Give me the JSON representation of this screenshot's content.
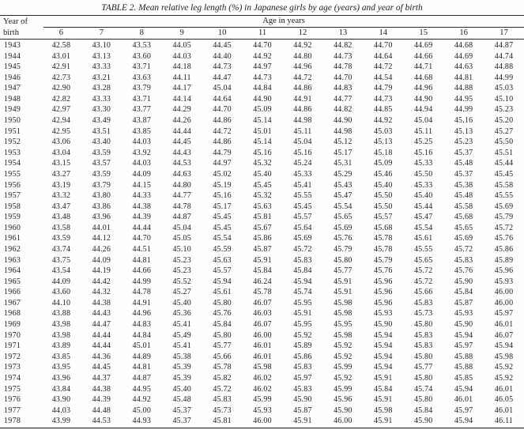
{
  "title": "TABLE 2. Mean relative leg length (%) in Japanese girls by age (years) and year of birth",
  "table": {
    "row_header_line1": "Year of",
    "row_header_line2": "birth",
    "col_group_label": "Age in years",
    "age_columns": [
      "6",
      "7",
      "8",
      "9",
      "10",
      "11",
      "12",
      "13",
      "14",
      "15",
      "16",
      "17"
    ],
    "rows": [
      {
        "year": "1943",
        "values": [
          "42.58",
          "43.10",
          "43.53",
          "44.05",
          "44.45",
          "44.70",
          "44.92",
          "44.82",
          "44.70",
          "44.69",
          "44.68",
          "44.87"
        ]
      },
      {
        "year": "1944",
        "values": [
          "43.01",
          "43.13",
          "43.60",
          "44.03",
          "44.40",
          "44.92",
          "44.80",
          "44.73",
          "44.64",
          "44.66",
          "44.69",
          "44.74"
        ]
      },
      {
        "year": "1945",
        "values": [
          "42.91",
          "43.33",
          "43.71",
          "44.18",
          "44.73",
          "44.97",
          "44.96",
          "44.78",
          "44.72",
          "44.71",
          "44.63",
          "44.88"
        ]
      },
      {
        "year": "1946",
        "values": [
          "42.73",
          "43.21",
          "43.63",
          "44.11",
          "44.47",
          "44.73",
          "44.72",
          "44.70",
          "44.54",
          "44.68",
          "44.81",
          "44.99"
        ]
      },
      {
        "year": "1947",
        "values": [
          "42.90",
          "43.28",
          "43.79",
          "44.17",
          "45.04",
          "44.84",
          "44.86",
          "44.83",
          "44.79",
          "44.96",
          "44.88",
          "45.03"
        ]
      },
      {
        "year": "1948",
        "values": [
          "42.82",
          "43.33",
          "43.71",
          "44.14",
          "44.64",
          "44.90",
          "44.91",
          "44.77",
          "44.73",
          "44.90",
          "44.95",
          "45.10"
        ]
      },
      {
        "year": "1949",
        "values": [
          "42.97",
          "43.30",
          "43.77",
          "44.29",
          "44.70",
          "45.09",
          "44.86",
          "44.82",
          "44.85",
          "44.94",
          "44.99",
          "45.23"
        ]
      },
      {
        "year": "1950",
        "values": [
          "42.94",
          "43.49",
          "43.87",
          "44.26",
          "44.86",
          "45.14",
          "44.98",
          "44.90",
          "44.92",
          "45.04",
          "45.16",
          "45.20"
        ]
      },
      {
        "year": "1951",
        "values": [
          "42.95",
          "43.51",
          "43.85",
          "44.44",
          "44.72",
          "45.01",
          "45.11",
          "44.98",
          "45.03",
          "45.11",
          "45.13",
          "45.27"
        ]
      },
      {
        "year": "1952",
        "values": [
          "43.06",
          "43.40",
          "44.03",
          "44.45",
          "44.86",
          "45.14",
          "45.04",
          "45.12",
          "45.13",
          "45.25",
          "45.23",
          "45.50"
        ]
      },
      {
        "year": "1953",
        "values": [
          "43.04",
          "43.59",
          "43.92",
          "44.43",
          "44.79",
          "45.16",
          "45.16",
          "45.17",
          "45.18",
          "45.16",
          "45.37",
          "45.51"
        ]
      },
      {
        "year": "1954",
        "values": [
          "43.15",
          "43.57",
          "44.03",
          "44.53",
          "44.97",
          "45.32",
          "45.24",
          "45.31",
          "45.09",
          "45.33",
          "45.48",
          "45.44"
        ]
      },
      {
        "year": "1955",
        "values": [
          "43.27",
          "43.59",
          "44.09",
          "44.63",
          "45.02",
          "45.40",
          "45.33",
          "45.29",
          "45.46",
          "45.50",
          "45.37",
          "45.45"
        ]
      },
      {
        "year": "1956",
        "values": [
          "43.19",
          "43.79",
          "44.15",
          "44.80",
          "45.19",
          "45.45",
          "45.41",
          "45.43",
          "45.40",
          "45.33",
          "45.38",
          "45.58"
        ]
      },
      {
        "year": "1957",
        "values": [
          "43.32",
          "43.80",
          "44.33",
          "44.77",
          "45.16",
          "45.32",
          "45.55",
          "45.47",
          "45.50",
          "45.40",
          "45.48",
          "45.55"
        ]
      },
      {
        "year": "1958",
        "values": [
          "43.47",
          "43.86",
          "44.38",
          "44.78",
          "45.17",
          "45.63",
          "45.45",
          "45.54",
          "45.50",
          "45.44",
          "45.58",
          "45.69"
        ]
      },
      {
        "year": "1959",
        "values": [
          "43.48",
          "43.96",
          "44.39",
          "44.87",
          "45.45",
          "45.81",
          "45.57",
          "45.65",
          "45.57",
          "45.47",
          "45.68",
          "45.79"
        ]
      },
      {
        "year": "1960",
        "values": [
          "43.58",
          "44.01",
          "44.44",
          "45.04",
          "45.45",
          "45.67",
          "45.64",
          "45.69",
          "45.68",
          "45.54",
          "45.65",
          "45.72"
        ]
      },
      {
        "year": "1961",
        "values": [
          "43.59",
          "44.12",
          "44.70",
          "45.05",
          "45.54",
          "45.86",
          "45.69",
          "45.76",
          "45.78",
          "45.61",
          "45.69",
          "45.76"
        ]
      },
      {
        "year": "1962",
        "values": [
          "43.74",
          "44.26",
          "44.51",
          "45.10",
          "45.59",
          "45.87",
          "45.72",
          "45.79",
          "45.78",
          "45.55",
          "45.72",
          "45.86"
        ]
      },
      {
        "year": "1963",
        "values": [
          "43.75",
          "44.09",
          "44.81",
          "45.23",
          "45.63",
          "45.91",
          "45.83",
          "45.80",
          "45.79",
          "45.65",
          "45.83",
          "45.89"
        ]
      },
      {
        "year": "1964",
        "values": [
          "43.54",
          "44.19",
          "44.66",
          "45.23",
          "45.57",
          "45.84",
          "45.84",
          "45.77",
          "45.76",
          "45.72",
          "45.76",
          "45.96"
        ]
      },
      {
        "year": "1965",
        "values": [
          "44.09",
          "44.42",
          "44.99",
          "45.52",
          "45.94",
          "46.24",
          "45.94",
          "45.91",
          "45.96",
          "45.72",
          "45.90",
          "45.93"
        ]
      },
      {
        "year": "1966",
        "values": [
          "43.60",
          "44.32",
          "44.78",
          "45.27",
          "45.61",
          "45.78",
          "45.74",
          "45.91",
          "45.96",
          "45.66",
          "45.84",
          "46.00"
        ]
      },
      {
        "year": "1967",
        "values": [
          "44.10",
          "44.38",
          "44.91",
          "45.40",
          "45.80",
          "46.07",
          "45.95",
          "45.98",
          "45.96",
          "45.83",
          "45.87",
          "46.00"
        ]
      },
      {
        "year": "1968",
        "values": [
          "43.88",
          "44.43",
          "44.96",
          "45.36",
          "45.76",
          "46.03",
          "45.91",
          "45.98",
          "45.93",
          "45.73",
          "45.93",
          "45.97"
        ]
      },
      {
        "year": "1969",
        "values": [
          "43.98",
          "44.47",
          "44.83",
          "45.41",
          "45.84",
          "46.07",
          "45.95",
          "45.95",
          "45.90",
          "45.80",
          "45.90",
          "46.01"
        ]
      },
      {
        "year": "1970",
        "values": [
          "43.98",
          "44.44",
          "44.84",
          "45.49",
          "45.80",
          "46.00",
          "45.92",
          "45.98",
          "45.94",
          "45.83",
          "45.94",
          "46.07"
        ]
      },
      {
        "year": "1971",
        "values": [
          "43.89",
          "44.44",
          "45.01",
          "45.41",
          "45.77",
          "46.01",
          "45.89",
          "45.92",
          "45.94",
          "45.83",
          "45.97",
          "45.94"
        ]
      },
      {
        "year": "1972",
        "values": [
          "43.85",
          "44.36",
          "44.89",
          "45.38",
          "45.66",
          "46.01",
          "45.86",
          "45.92",
          "45.94",
          "45.80",
          "45.88",
          "45.98"
        ]
      },
      {
        "year": "1973",
        "values": [
          "43.95",
          "44.45",
          "44.81",
          "45.39",
          "45.78",
          "45.98",
          "45.83",
          "45.99",
          "45.94",
          "45.77",
          "45.88",
          "45.92"
        ]
      },
      {
        "year": "1974",
        "values": [
          "43.96",
          "44.37",
          "44.87",
          "45.39",
          "45.82",
          "46.02",
          "45.97",
          "45.92",
          "45.91",
          "45.80",
          "45.85",
          "45.92"
        ]
      },
      {
        "year": "1975",
        "values": [
          "43.84",
          "44.38",
          "44.95",
          "45.40",
          "45.72",
          "46.02",
          "45.83",
          "45.99",
          "45.84",
          "45.74",
          "45.94",
          "46.01"
        ]
      },
      {
        "year": "1976",
        "values": [
          "43.90",
          "44.39",
          "44.92",
          "45.48",
          "45.83",
          "45.99",
          "45.90",
          "45.96",
          "45.91",
          "45.80",
          "46.01",
          "46.05"
        ]
      },
      {
        "year": "1977",
        "values": [
          "44.03",
          "44.48",
          "45.00",
          "45.37",
          "45.73",
          "45.93",
          "45.87",
          "45.90",
          "45.98",
          "45.84",
          "45.97",
          "46.01"
        ]
      },
      {
        "year": "1978",
        "values": [
          "43.99",
          "44.53",
          "44.93",
          "45.37",
          "45.81",
          "46.00",
          "45.91",
          "46.00",
          "45.91",
          "45.90",
          "45.94",
          "46.11"
        ]
      }
    ]
  }
}
